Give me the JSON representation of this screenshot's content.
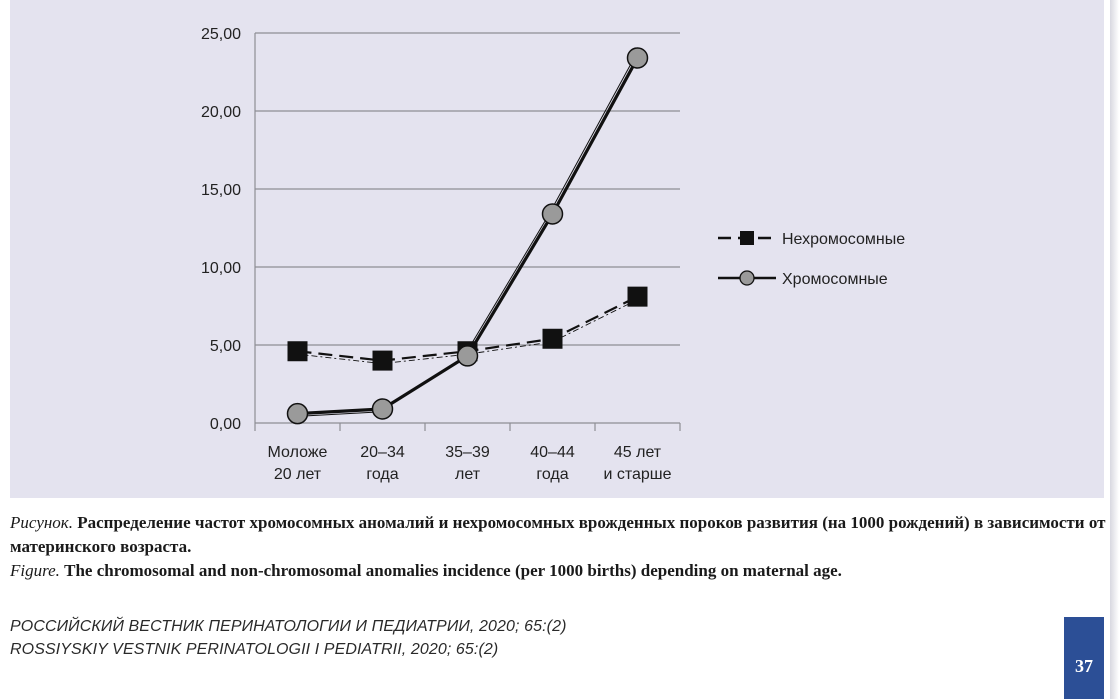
{
  "chart_data": {
    "type": "line",
    "categories": [
      [
        "Моложе",
        "20 лет"
      ],
      [
        "20–34",
        "года"
      ],
      [
        "35–39",
        "лет"
      ],
      [
        "40–44",
        "года"
      ],
      [
        "45 лет",
        "и старше"
      ]
    ],
    "ylim": [
      0,
      25
    ],
    "yticks": [
      "0,00",
      "5,00",
      "10,00",
      "15,00",
      "20,00",
      "25,00"
    ],
    "ytick_values": [
      0,
      5,
      10,
      15,
      20,
      25
    ],
    "grid": true,
    "legend_position": "right",
    "series": [
      {
        "name": "Нехромосомные",
        "values": [
          4.6,
          4.0,
          4.6,
          5.4,
          8.1
        ],
        "style": "dashed",
        "marker": "square",
        "color": "#111111"
      },
      {
        "name": "Хромосомные",
        "values": [
          0.6,
          0.9,
          4.3,
          13.4,
          23.4
        ],
        "style": "solid",
        "marker": "circle",
        "color": "#111111",
        "marker_fill": "#9a9a9a"
      }
    ]
  },
  "caption": {
    "ru_lead": "Рисунок.",
    "ru_text": "Распределение частот хромосомных аномалий и нехромосомных врожденных пороков развития (на 1000 рождений) в зависимости от материнского возраста.",
    "en_lead": "Figure.",
    "en_text": "The chromosomal and non-chromosomal anomalies incidence (per 1000 births) depending on maternal age."
  },
  "journal": {
    "ru": "РОССИЙСКИЙ ВЕСТНИК ПЕРИНАТОЛОГИИ И ПЕДИАТРИИ, 2020; 65:(2)",
    "en": "ROSSIYSKIY VESTNIK PERINATOLOGII I PEDIATRII, 2020; 65:(2)"
  },
  "page_number": "37"
}
